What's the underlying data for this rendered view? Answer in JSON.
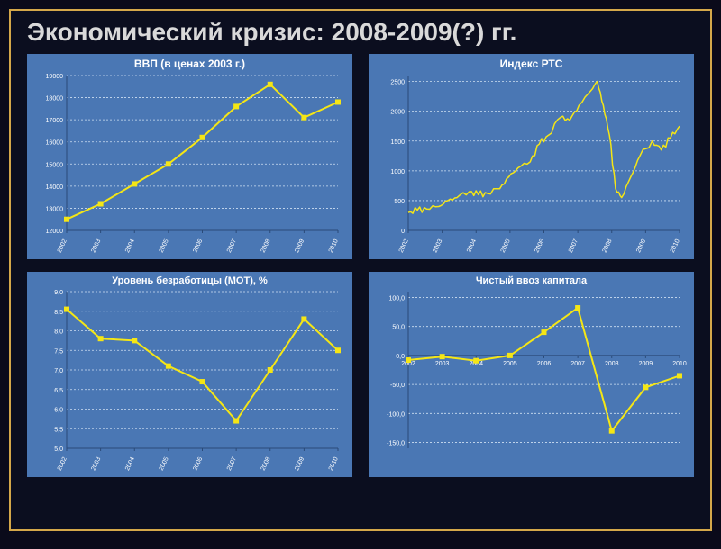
{
  "slide": {
    "title": "Экономический кризис: 2008-2009(?) гг.",
    "background": "#0b0e1f",
    "border_color": "#d4a84a",
    "title_color": "#d9d9d9",
    "title_fontsize": 28
  },
  "charts": [
    {
      "id": "gdp",
      "title": "ВВП (в ценах 2003 г.)",
      "title_fontsize": 12,
      "type": "line",
      "panel_bg": "#4a77b4",
      "plot_bg": "#4a77b4",
      "line_color": "#f5e615",
      "line_width": 2,
      "marker": "square",
      "marker_size": 5,
      "marker_color": "#f5e615",
      "grid_color": "#cfe0f2",
      "grid_dash": "2 2",
      "axis_color": "#2a4a78",
      "text_color": "#ffffff",
      "tick_fontsize": 7,
      "xticks": [
        "2002",
        "2003",
        "2004",
        "2005",
        "2006",
        "2007",
        "2008",
        "2009",
        "2010"
      ],
      "xrotate": -65,
      "yticks": [
        12000,
        13000,
        14000,
        15000,
        16000,
        17000,
        18000,
        19000
      ],
      "ylim": [
        12000,
        19000
      ],
      "x": [
        2002,
        2003,
        2004,
        2005,
        2006,
        2007,
        2008,
        2009,
        2010
      ],
      "y": [
        12500,
        13200,
        14100,
        15000,
        16200,
        17600,
        18600,
        17100,
        17800
      ]
    },
    {
      "id": "rts",
      "title": "Индекс РТС",
      "title_fontsize": 12,
      "type": "line",
      "panel_bg": "#4a77b4",
      "plot_bg": "#4a77b4",
      "line_color": "#f5e615",
      "line_width": 1.5,
      "marker": "none",
      "grid_color": "#cfe0f2",
      "grid_dash": "2 2",
      "axis_color": "#2a4a78",
      "text_color": "#ffffff",
      "tick_fontsize": 7,
      "xticks": [
        "2002",
        "2003",
        "2004",
        "2005",
        "2006",
        "2007",
        "2008",
        "2009",
        "2010"
      ],
      "xrotate": -65,
      "yticks": [
        0,
        500,
        1000,
        1500,
        2000,
        2500
      ],
      "ylim": [
        0,
        2600
      ],
      "x": [
        2002.0,
        2002.3,
        2002.6,
        2003.0,
        2003.3,
        2003.6,
        2004.0,
        2004.3,
        2004.6,
        2005.0,
        2005.3,
        2005.6,
        2006.0,
        2006.3,
        2006.6,
        2007.0,
        2007.3,
        2007.6,
        2008.0,
        2008.2,
        2008.4,
        2008.6,
        2008.8,
        2009.0,
        2009.3,
        2009.6,
        2010.0,
        2010.3,
        2010.6,
        2010.9
      ],
      "y": [
        300,
        340,
        360,
        400,
        500,
        550,
        650,
        600,
        620,
        700,
        900,
        1050,
        1150,
        1450,
        1600,
        1900,
        1850,
        2100,
        2350,
        2500,
        2100,
        1600,
        700,
        550,
        900,
        1250,
        1500,
        1350,
        1550,
        1750
      ],
      "noise_amp": 70
    },
    {
      "id": "unemp",
      "title": "Уровень безработицы (МОТ), %",
      "title_fontsize": 11,
      "type": "line",
      "panel_bg": "#4a77b4",
      "plot_bg": "#4a77b4",
      "line_color": "#f5e615",
      "line_width": 2,
      "marker": "square",
      "marker_size": 5,
      "marker_color": "#f5e615",
      "grid_color": "#cfe0f2",
      "grid_dash": "2 2",
      "axis_color": "#2a4a78",
      "text_color": "#ffffff",
      "tick_fontsize": 7,
      "xticks": [
        "2002",
        "2003",
        "2004",
        "2005",
        "2006",
        "2007",
        "2008",
        "2009",
        "2010"
      ],
      "xrotate": -65,
      "yticks": [
        5.0,
        5.5,
        6.0,
        6.5,
        7.0,
        7.5,
        8.0,
        8.5,
        9.0
      ],
      "ylim": [
        5.0,
        9.0
      ],
      "ytick_format": ",1f_comma",
      "x": [
        2002,
        2003,
        2004,
        2005,
        2006,
        2007,
        2008,
        2009,
        2010
      ],
      "y": [
        8.55,
        7.8,
        7.75,
        7.1,
        6.7,
        5.7,
        7.0,
        8.3,
        7.5
      ]
    },
    {
      "id": "capital",
      "title": "Чистый ввоз  капитала",
      "title_fontsize": 11,
      "type": "line",
      "panel_bg": "#4a77b4",
      "plot_bg": "#4a77b4",
      "line_color": "#f5e615",
      "line_width": 2,
      "marker": "square",
      "marker_size": 5,
      "marker_color": "#f5e615",
      "grid_color": "#cfe0f2",
      "grid_dash": "2 2",
      "axis_color": "#2a4a78",
      "text_color": "#ffffff",
      "tick_fontsize": 7,
      "xticks": [
        "2002",
        "2003",
        "2004",
        "2005",
        "2006",
        "2007",
        "2008",
        "2009",
        "2010"
      ],
      "xticks_on_zero": true,
      "xrotate": 0,
      "yticks": [
        -150,
        -100,
        -50,
        0,
        50,
        100
      ],
      "ylim": [
        -160,
        110
      ],
      "ytick_format": ",1f_comma",
      "x": [
        2002,
        2003,
        2004,
        2005,
        2006,
        2007,
        2008,
        2009,
        2010
      ],
      "y": [
        -8,
        -2,
        -9,
        0,
        40,
        82,
        -130,
        -55,
        -35
      ]
    }
  ]
}
